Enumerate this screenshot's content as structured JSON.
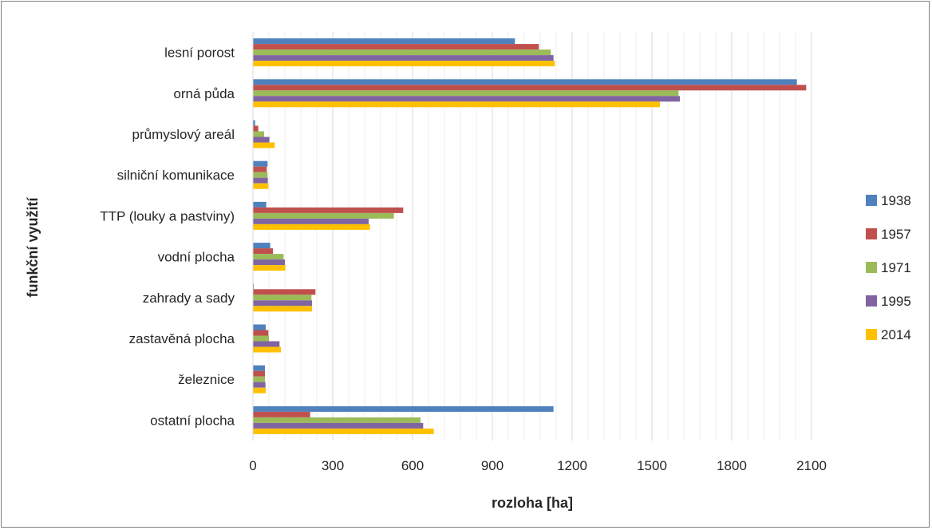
{
  "chart_data": {
    "type": "bar",
    "orientation": "horizontal",
    "title": "",
    "xlabel": "rozloha [ha]",
    "ylabel": "funkční využití",
    "xlim": [
      0,
      2100
    ],
    "xticks": [
      "0",
      "300",
      "600",
      "900",
      "1200",
      "1500",
      "1800",
      "2100"
    ],
    "grid": true,
    "legend_position": "right",
    "categories": [
      "lesní porost",
      "orná půda",
      "průmyslový areál",
      "silniční komunikace",
      "TTP (louky a pastviny)",
      "vodní plocha",
      "zahrady a sady",
      "zastavěná plocha",
      "železnice",
      "ostatní plocha"
    ],
    "series": [
      {
        "name": "1938",
        "color": "#4f81bd",
        "values": [
          985,
          2045,
          8,
          55,
          50,
          65,
          3,
          48,
          45,
          1130
        ]
      },
      {
        "name": "1957",
        "color": "#c0504d",
        "values": [
          1075,
          2080,
          20,
          52,
          565,
          75,
          235,
          58,
          45,
          215
        ]
      },
      {
        "name": "1971",
        "color": "#9bbb59",
        "values": [
          1120,
          1600,
          42,
          55,
          530,
          115,
          220,
          60,
          45,
          630
        ]
      },
      {
        "name": "1995",
        "color": "#8064a2",
        "values": [
          1130,
          1605,
          62,
          56,
          435,
          120,
          222,
          100,
          47,
          640
        ]
      },
      {
        "name": "2014",
        "color": "#ffc000",
        "values": [
          1135,
          1530,
          82,
          58,
          440,
          122,
          222,
          105,
          48,
          680
        ]
      }
    ]
  }
}
